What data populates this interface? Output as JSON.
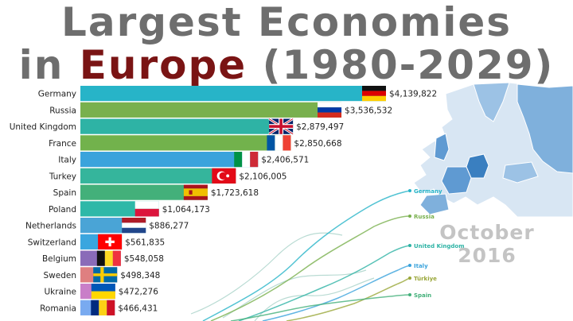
{
  "header": {
    "title_line1": "Largest Economies",
    "title_line2_prefix": "in ",
    "title_line2_highlight": "Europe",
    "title_line2_suffix": " (1980-2029)"
  },
  "date_label": "October 2016",
  "chart_data": {
    "type": "bar",
    "orientation": "horizontal",
    "categories": [
      "Germany",
      "Russia",
      "United Kingdom",
      "France",
      "Italy",
      "Turkey",
      "Spain",
      "Poland",
      "Netherlands",
      "Switzerland",
      "Belgium",
      "Sweden",
      "Ukraine",
      "Romania"
    ],
    "values": [
      4139822,
      3536532,
      2879497,
      2850668,
      2406571,
      2106005,
      1723618,
      1064173,
      886277,
      561835,
      548058,
      498348,
      472276,
      466431
    ],
    "value_labels": [
      "$4,139,822",
      "$3,536,532",
      "$2,879,497",
      "$2,850,668",
      "$2,406,571",
      "$2,106,005",
      "$1,723,618",
      "$1,064,173",
      "$886,277",
      "$561,835",
      "$548,058",
      "$498,348",
      "$472,276",
      "$466,431"
    ],
    "bar_colors": [
      "#27b4c8",
      "#79b04e",
      "#2eb3a5",
      "#72b24c",
      "#3aa3dc",
      "#35b59c",
      "#43b07a",
      "#2eb8a8",
      "#4aa4d6",
      "#3aa6df",
      "#8a6bb8",
      "#df7f80",
      "#c97ec8",
      "#79aaf0"
    ],
    "flag_icons": [
      "flag-germany-icon",
      "flag-russia-icon",
      "flag-uk-icon",
      "flag-france-icon",
      "flag-italy-icon",
      "flag-turkey-icon",
      "flag-spain-icon",
      "flag-poland-icon",
      "flag-netherlands-icon",
      "flag-switzerland-icon",
      "flag-belgium-icon",
      "flag-sweden-icon",
      "flag-ukraine-icon",
      "flag-romania-icon"
    ]
  },
  "trend_labels": [
    {
      "text": "Germany",
      "color": "#27b4c8"
    },
    {
      "text": "Russia",
      "color": "#79b04e"
    },
    {
      "text": "United Kingdom",
      "color": "#2eb3a5"
    },
    {
      "text": "Italy",
      "color": "#3aa3dc"
    },
    {
      "text": "Türkiye",
      "color": "#9aa73a"
    },
    {
      "text": "Spain",
      "color": "#43b07a"
    }
  ],
  "map": {
    "icon": "europe-map-icon",
    "land_color": "#d8e6f3",
    "highlight_color": "#3a7fc0",
    "mid_color": "#7fb0dc"
  }
}
